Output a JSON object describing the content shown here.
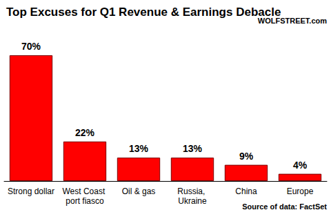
{
  "chart_data": {
    "type": "bar",
    "title": "Top Excuses for Q1 Revenue & Earnings Debacle",
    "annotations": [
      "WOLFSTREET.com",
      "Source of data: FactSet"
    ],
    "categories": [
      "Strong dollar",
      "West Coast port fiasco",
      "Oil & gas",
      "Russia, Ukraine",
      "China",
      "Europe"
    ],
    "values": [
      70,
      22,
      13,
      13,
      9,
      4
    ],
    "value_labels": [
      "70%",
      "22%",
      "13%",
      "13%",
      "9%",
      "4%"
    ],
    "color": "#ff0000",
    "ylim": [
      0,
      70
    ],
    "grid": false,
    "data_labels": true,
    "tick_labels": "x"
  }
}
